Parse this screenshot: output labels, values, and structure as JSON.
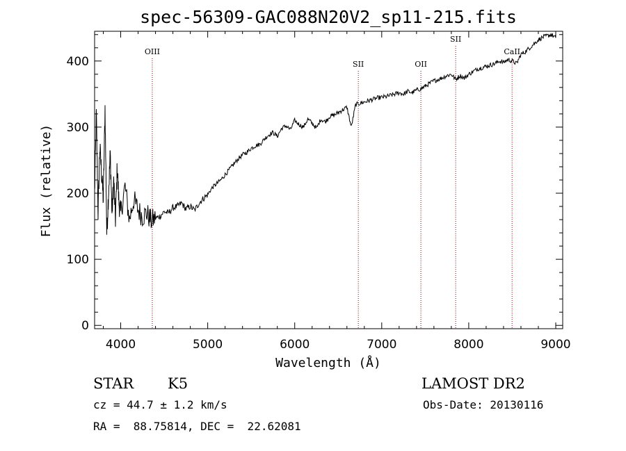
{
  "chart_data": {
    "type": "line",
    "title": "spec-56309-GAC088N20V2_sp11-215.fits",
    "xlabel": "Wavelength (Å)",
    "ylabel": "Flux (relative)",
    "xlim": [
      3700,
      9080
    ],
    "ylim": [
      -5,
      445
    ],
    "grid": false,
    "xticks": [
      4000,
      5000,
      6000,
      7000,
      8000,
      9000
    ],
    "yticks": [
      0,
      100,
      200,
      300,
      400
    ],
    "series": [
      {
        "x": [
          3700,
          3720,
          3740,
          3760,
          3780,
          3800,
          3820,
          3840,
          3860,
          3880,
          3900,
          3920,
          3940,
          3960,
          3980,
          4000,
          4050,
          4100,
          4150,
          4200,
          4250,
          4300,
          4350,
          4400,
          4450,
          4500,
          4550,
          4600,
          4650,
          4700,
          4750,
          4800,
          4850,
          4900,
          4950,
          5000,
          5050,
          5100,
          5150,
          5200,
          5250,
          5300,
          5350,
          5400,
          5450,
          5500,
          5550,
          5600,
          5650,
          5700,
          5750,
          5800,
          5850,
          5900,
          5950,
          6000,
          6050,
          6100,
          6150,
          6200,
          6250,
          6300,
          6350,
          6400,
          6450,
          6500,
          6550,
          6600,
          6650,
          6700,
          6750,
          6800,
          6850,
          6900,
          6950,
          7000,
          7050,
          7100,
          7150,
          7200,
          7250,
          7300,
          7350,
          7400,
          7450,
          7500,
          7550,
          7600,
          7650,
          7700,
          7750,
          7800,
          7850,
          7900,
          7950,
          8000,
          8050,
          8100,
          8150,
          8200,
          8250,
          8300,
          8350,
          8400,
          8450,
          8500,
          8550,
          8600,
          8650,
          8700,
          8750,
          8800,
          8850,
          8900,
          8950,
          9000
        ],
        "y": [
          200,
          320,
          170,
          270,
          230,
          190,
          330,
          140,
          200,
          260,
          170,
          220,
          160,
          240,
          185,
          170,
          210,
          160,
          190,
          175,
          165,
          170,
          158,
          162,
          165,
          172,
          170,
          178,
          180,
          185,
          176,
          180,
          174,
          185,
          192,
          198,
          208,
          214,
          220,
          228,
          236,
          244,
          252,
          258,
          262,
          268,
          272,
          274,
          282,
          288,
          292,
          286,
          298,
          302,
          296,
          310,
          304,
          300,
          312,
          306,
          298,
          312,
          308,
          316,
          318,
          322,
          326,
          330,
          300,
          334,
          336,
          338,
          340,
          342,
          344,
          345,
          346,
          348,
          350,
          352,
          350,
          354,
          352,
          356,
          358,
          362,
          366,
          370,
          372,
          375,
          378,
          380,
          372,
          378,
          374,
          380,
          384,
          388,
          390,
          392,
          394,
          396,
          400,
          398,
          402,
          400,
          396,
          410,
          414,
          420,
          426,
          432,
          436,
          438,
          440,
          435
        ]
      }
    ],
    "annotations": [
      {
        "label": "OIII",
        "x": 4363
      },
      {
        "label": "SII",
        "x": 6731
      },
      {
        "label": "OII",
        "x": 7450
      },
      {
        "label": "SII",
        "x": 7850
      },
      {
        "label": "CaII",
        "x": 8498
      }
    ]
  },
  "info": {
    "class_label": "STAR",
    "subclass": "K5",
    "survey": "LAMOST DR2",
    "cz": "cz = 44.7 ± 1.2 km/s",
    "obs_date": "Obs-Date: 20130116",
    "coords": "RA =  88.75814, DEC =  22.62081"
  }
}
